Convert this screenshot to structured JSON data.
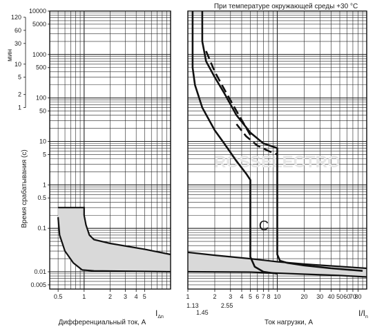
{
  "chart_data": {
    "type": "line",
    "header_note": "При температуре окружающей среды +30 °C",
    "watermark": "ROSSELECTRO",
    "y_axis": {
      "label": "Время срабатывания (с)",
      "scale": "log",
      "range": [
        0.004,
        10000
      ],
      "ticks_seconds": [
        10000,
        5000,
        1000,
        500,
        100,
        50,
        10,
        5,
        1,
        0.5,
        0.1,
        0.01,
        0.005
      ],
      "minutes_label": "мин",
      "ticks_minutes": [
        120,
        60,
        30,
        10,
        5,
        2,
        1
      ]
    },
    "left_panel": {
      "xlabel": "Дифференциальный ток, А",
      "ratio_label": "I",
      "ratio_sub": "Δn",
      "x_scale": "log",
      "x_range": [
        0.4,
        10
      ],
      "x_ticks": [
        0.5,
        1,
        2,
        3,
        4,
        5
      ],
      "band_upper": [
        [
          0.5,
          0.3
        ],
        [
          1.0,
          0.3
        ],
        [
          1.0,
          0.2
        ],
        [
          1.05,
          0.12
        ],
        [
          1.15,
          0.07
        ],
        [
          1.3,
          0.055
        ],
        [
          2,
          0.045
        ],
        [
          5,
          0.033
        ],
        [
          10,
          0.025
        ]
      ],
      "band_lower": [
        [
          0.5,
          0.18
        ],
        [
          0.52,
          0.07
        ],
        [
          0.6,
          0.03
        ],
        [
          0.75,
          0.016
        ],
        [
          0.95,
          0.011
        ],
        [
          1.3,
          0.0105
        ],
        [
          5,
          0.0102
        ],
        [
          10,
          0.01
        ]
      ]
    },
    "right_panel": {
      "xlabel": "Ток нагрузки, А",
      "ratio_label": "I/I",
      "ratio_sub": "n",
      "x_scale": "log",
      "x_range": [
        1,
        100
      ],
      "x_ticks": [
        1,
        2,
        3,
        4,
        5,
        6,
        7,
        8,
        10,
        20,
        30,
        40,
        50,
        60,
        70,
        80
      ],
      "extra_ticks": [
        "1.13",
        "1.45",
        "2.55"
      ],
      "curve_label": "C",
      "curves": [
        {
          "style": "solid",
          "points": [
            [
              1.13,
              10000
            ],
            [
              1.13,
              500
            ],
            [
              1.2,
              200
            ],
            [
              1.45,
              60
            ],
            [
              2,
              18
            ],
            [
              2.55,
              9
            ],
            [
              3.5,
              3.5
            ],
            [
              4.5,
              1.8
            ],
            [
              5,
              1.3
            ],
            [
              5,
              0.022
            ],
            [
              5.6,
              0.013
            ],
            [
              7,
              0.01
            ],
            [
              10,
              0.009
            ]
          ]
        },
        {
          "style": "solid",
          "points": [
            [
              1.45,
              10000
            ],
            [
              1.45,
              2000
            ],
            [
              1.6,
              700
            ],
            [
              2,
              300
            ],
            [
              2.55,
              130
            ],
            [
              3.5,
              40
            ],
            [
              5,
              16
            ],
            [
              7,
              9
            ],
            [
              10,
              7
            ],
            [
              10,
              0.025
            ],
            [
              10.7,
              0.018
            ],
            [
              13,
              0.016
            ],
            [
              20,
              0.014
            ],
            [
              40,
              0.012
            ],
            [
              90,
              0.0105
            ]
          ]
        },
        {
          "style": "dashed",
          "points": [
            [
              1.6,
              1200
            ],
            [
              2,
              400
            ],
            [
              2.55,
              160
            ],
            [
              3.5,
              50
            ],
            [
              5,
              14
            ]
          ]
        },
        {
          "style": "dashed",
          "points": [
            [
              3.5,
              25
            ],
            [
              4.5,
              13
            ],
            [
              6,
              8
            ],
            [
              8,
              6
            ],
            [
              10,
              5
            ]
          ]
        }
      ],
      "band_upper": [
        [
          1,
          0.028
        ],
        [
          2,
          0.024
        ],
        [
          5,
          0.02
        ],
        [
          10,
          0.017
        ],
        [
          20,
          0.015
        ],
        [
          100,
          0.012
        ]
      ],
      "band_lower": [
        [
          1,
          0.01
        ],
        [
          5,
          0.0098
        ],
        [
          10,
          0.0093
        ],
        [
          20,
          0.0088
        ],
        [
          50,
          0.0082
        ],
        [
          100,
          0.0076
        ]
      ]
    }
  }
}
